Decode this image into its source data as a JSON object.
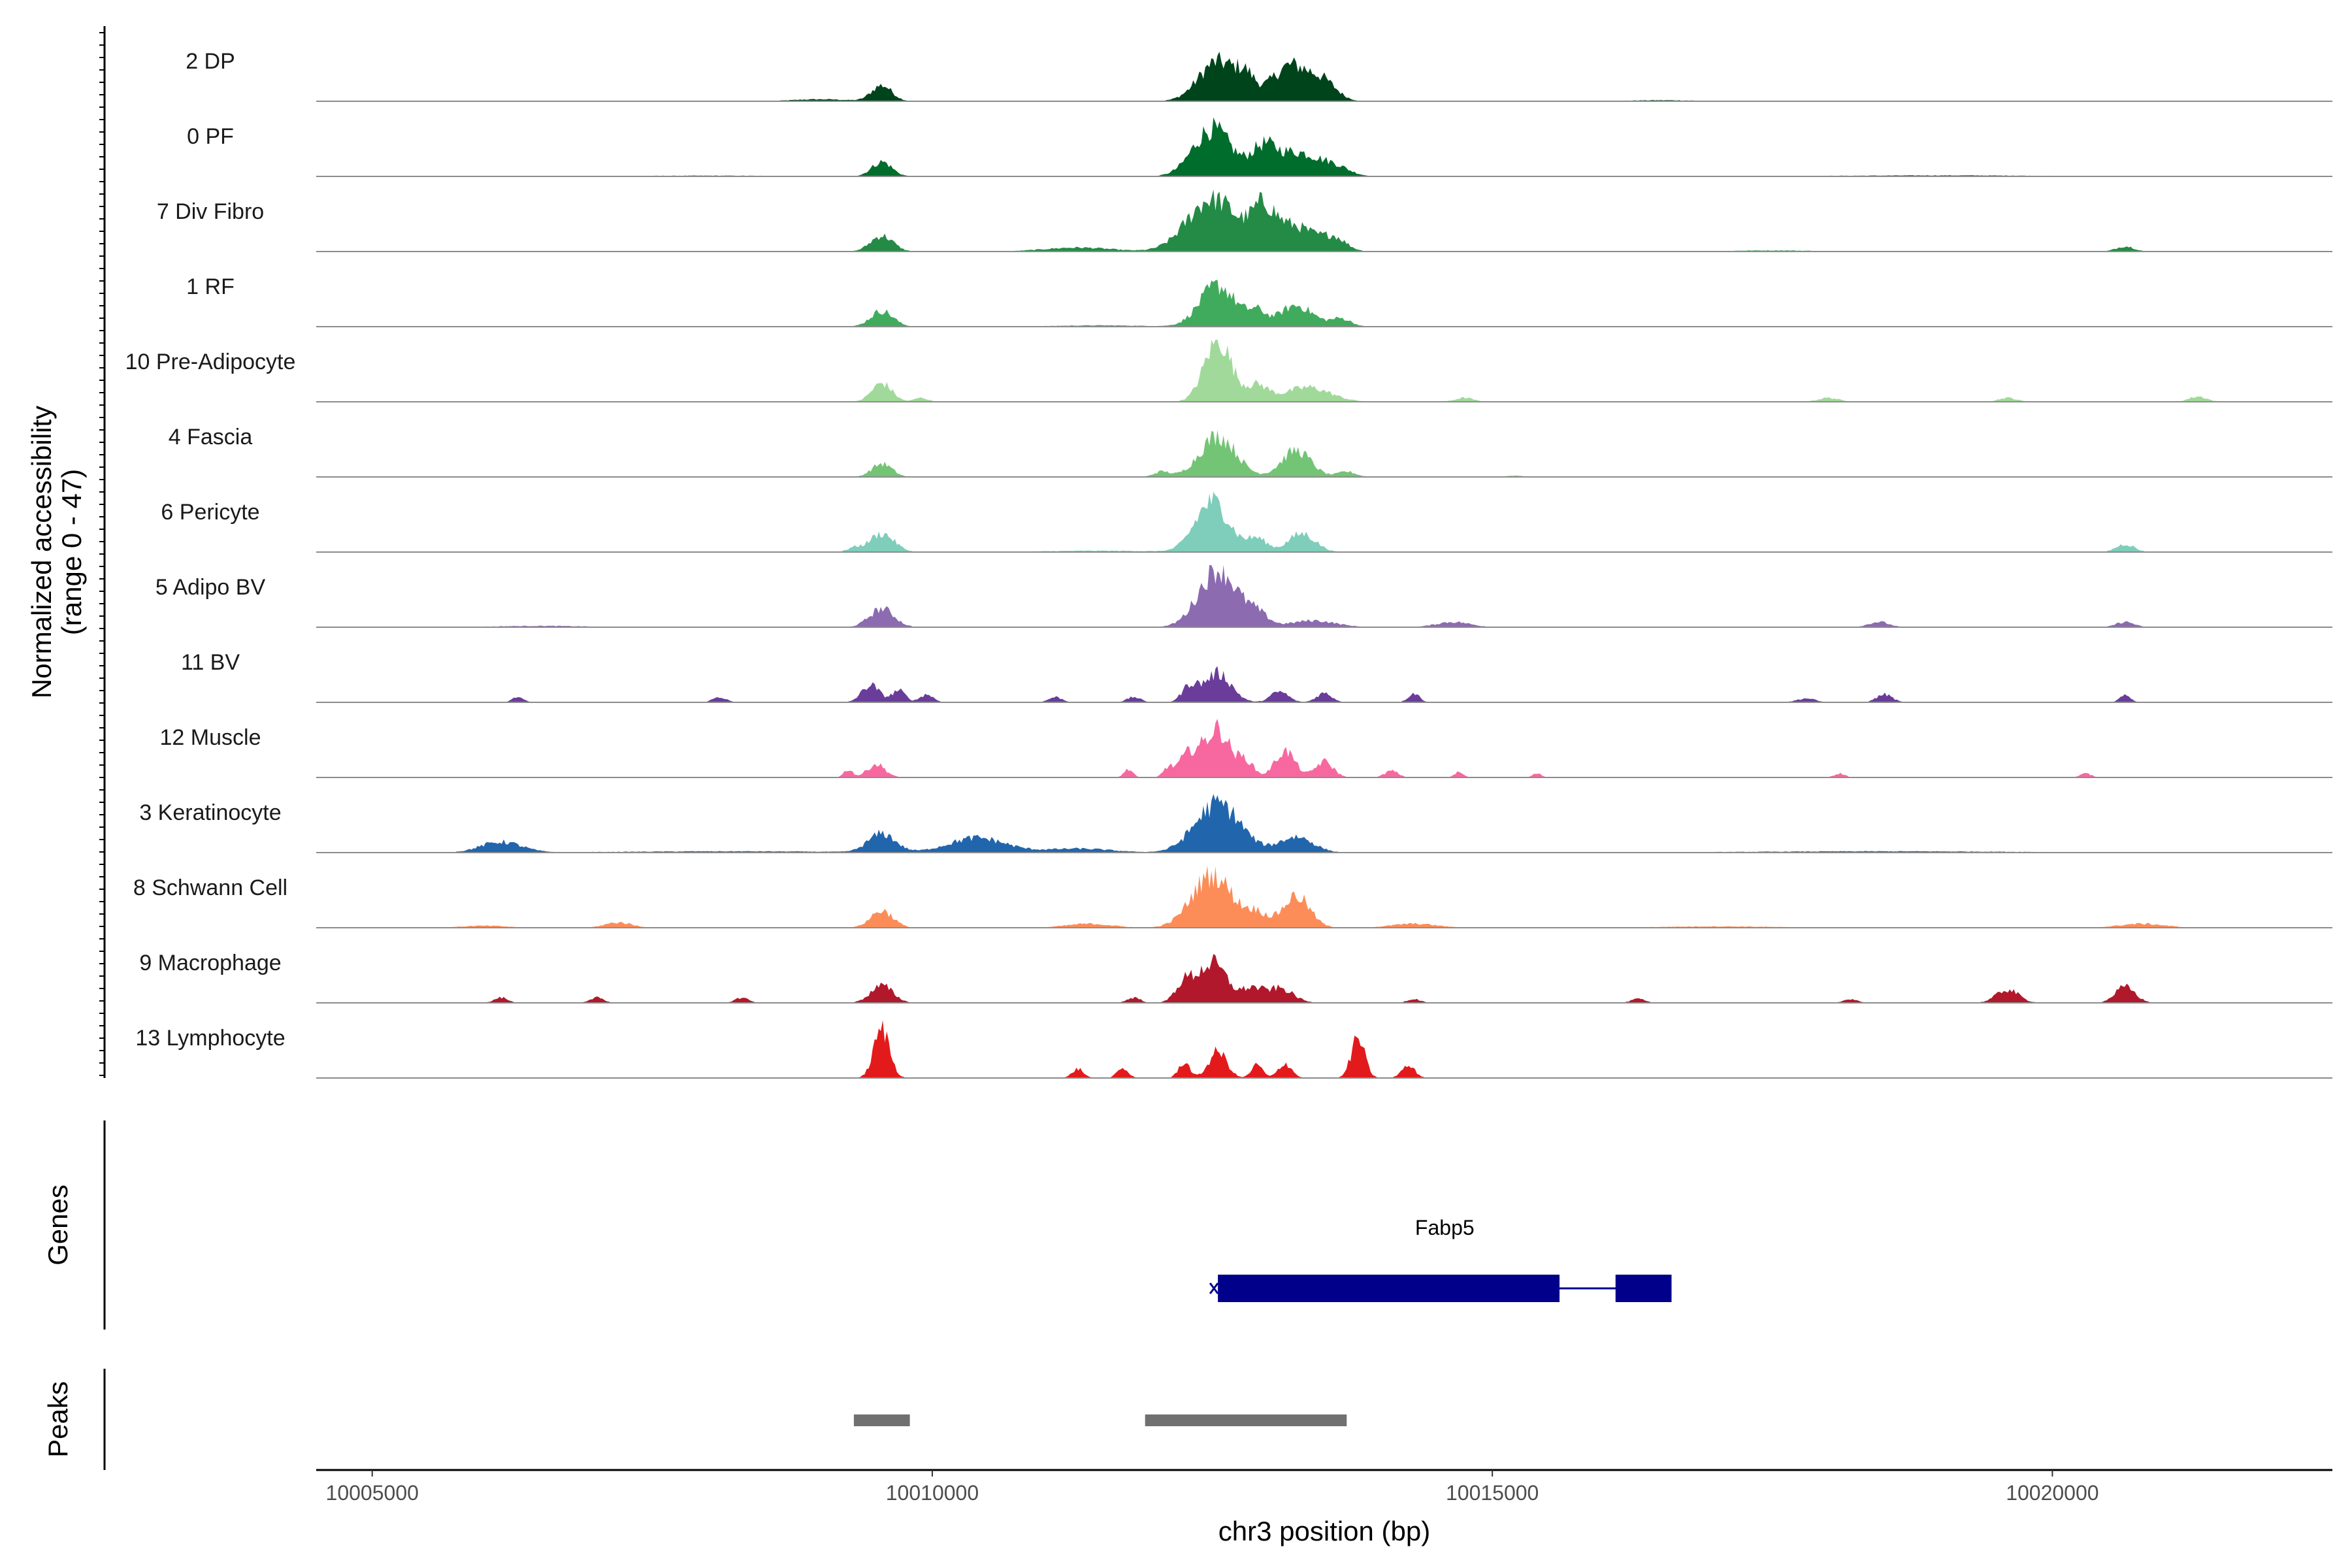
{
  "chart_data": {
    "type": "area",
    "ylabel_line1": "Normalized accessibility",
    "ylabel_line2": "(range 0 - 47)",
    "xlabel": "chr3 position (bp)",
    "xlim": [
      10004500,
      10022500
    ],
    "x_ticks": [
      10005000,
      10010000,
      10015000,
      10020000
    ],
    "x_tick_labels": [
      "10005000",
      "10010000",
      "10015000",
      "10020000"
    ],
    "ylim": [
      0,
      47
    ],
    "panel_labels": {
      "genes": "Genes",
      "peaks": "Peaks"
    },
    "series": [
      {
        "name": "2 DP",
        "color": "#00441b",
        "peaks": [
          [
            10009550,
            12,
            90
          ],
          [
            10012550,
            30,
            170
          ],
          [
            10012800,
            13,
            80
          ],
          [
            10013200,
            27,
            170
          ],
          [
            10013500,
            12,
            120
          ],
          [
            10009000,
            1.5,
            250
          ],
          [
            10016500,
            0.8,
            300
          ]
        ]
      },
      {
        "name": "0 PF",
        "color": "#006d2c",
        "peaks": [
          [
            10009550,
            11,
            90
          ],
          [
            10012500,
            36,
            170
          ],
          [
            10012950,
            18,
            110
          ],
          [
            10013250,
            18,
            200
          ],
          [
            10013600,
            6,
            130
          ],
          [
            10008000,
            0.6,
            600
          ],
          [
            10019000,
            0.8,
            900
          ]
        ]
      },
      {
        "name": "7 Div Fibro",
        "color": "#238b45",
        "peaks": [
          [
            10009550,
            12,
            100
          ],
          [
            10012500,
            40,
            220
          ],
          [
            10012950,
            22,
            100
          ],
          [
            10013200,
            20,
            220
          ],
          [
            10013600,
            8,
            100
          ],
          [
            10011300,
            3,
            300
          ],
          [
            10020650,
            4,
            80
          ],
          [
            10017500,
            0.8,
            400
          ]
        ]
      },
      {
        "name": "1 RF",
        "color": "#41ab5d",
        "peaks": [
          [
            10009550,
            12,
            100
          ],
          [
            10012550,
            31,
            160
          ],
          [
            10012900,
            10,
            80
          ],
          [
            10013250,
            16,
            150
          ],
          [
            10013650,
            6,
            90
          ],
          [
            10011500,
            1,
            400
          ]
        ]
      },
      {
        "name": "10 Pre-Adipocyte",
        "color": "#a1d99b",
        "peaks": [
          [
            10009550,
            14,
            90
          ],
          [
            10012550,
            47,
            120
          ],
          [
            10012900,
            12,
            100
          ],
          [
            10013350,
            11,
            200
          ],
          [
            10009900,
            3,
            60
          ],
          [
            10014750,
            3,
            80
          ],
          [
            10018000,
            3,
            90
          ],
          [
            10019600,
            3,
            80
          ],
          [
            10021300,
            4,
            80
          ]
        ]
      },
      {
        "name": "4 Fascia",
        "color": "#74c476",
        "peaks": [
          [
            10009550,
            10,
            90
          ],
          [
            10012550,
            31,
            160
          ],
          [
            10013250,
            20,
            130
          ],
          [
            10013700,
            4,
            80
          ],
          [
            10012050,
            4,
            70
          ],
          [
            10015200,
            1,
            80
          ]
        ]
      },
      {
        "name": "6 Pericyte",
        "color": "#7fcdbb",
        "peaks": [
          [
            10009550,
            14,
            110
          ],
          [
            10012500,
            38,
            150
          ],
          [
            10012900,
            10,
            90
          ],
          [
            10013300,
            14,
            120
          ],
          [
            10020650,
            6,
            80
          ],
          [
            10009300,
            3,
            60
          ],
          [
            10011500,
            1,
            500
          ]
        ]
      },
      {
        "name": "5 Adipo BV",
        "color": "#8c6bb1",
        "peaks": [
          [
            10009550,
            14,
            110
          ],
          [
            10012550,
            44,
            170
          ],
          [
            10012900,
            9,
            100
          ],
          [
            10013400,
            5,
            200
          ],
          [
            10014650,
            4,
            150
          ],
          [
            10018450,
            4,
            90
          ],
          [
            10020650,
            4,
            80
          ],
          [
            10006500,
            1,
            400
          ]
        ]
      },
      {
        "name": "11 BV",
        "color": "#6a3d9a",
        "peaks": [
          [
            10009450,
            13,
            80
          ],
          [
            10009700,
            9,
            60
          ],
          [
            10009950,
            6,
            60
          ],
          [
            10012550,
            22,
            120
          ],
          [
            10012300,
            12,
            70
          ],
          [
            10013100,
            8,
            80
          ],
          [
            10013500,
            7,
            70
          ],
          [
            10014300,
            7,
            50
          ],
          [
            10018500,
            6,
            70
          ],
          [
            10020650,
            5,
            50
          ],
          [
            10006300,
            4,
            50
          ],
          [
            10008100,
            4,
            60
          ],
          [
            10011100,
            4,
            60
          ],
          [
            10011800,
            4,
            60
          ],
          [
            10017800,
            3,
            80
          ]
        ]
      },
      {
        "name": "12 Muscle",
        "color": "#f768a1",
        "peaks": [
          [
            10009500,
            10,
            80
          ],
          [
            10009250,
            6,
            40
          ],
          [
            10012300,
            18,
            100
          ],
          [
            10012550,
            36,
            110
          ],
          [
            10012800,
            12,
            70
          ],
          [
            10013150,
            20,
            90
          ],
          [
            10013500,
            12,
            80
          ],
          [
            10011750,
            6,
            40
          ],
          [
            10012100,
            6,
            40
          ],
          [
            10014100,
            5,
            60
          ],
          [
            10014700,
            4,
            40
          ],
          [
            10015400,
            3,
            40
          ],
          [
            10018100,
            3,
            50
          ],
          [
            10020300,
            3,
            50
          ]
        ]
      },
      {
        "name": "3 Keratinocyte",
        "color": "#2166ac",
        "peaks": [
          [
            10009550,
            14,
            120
          ],
          [
            10012550,
            37,
            200
          ],
          [
            10013250,
            12,
            150
          ],
          [
            10010400,
            11,
            250
          ],
          [
            10006150,
            8,
            180
          ],
          [
            10011300,
            3,
            300
          ],
          [
            10008200,
            1,
            1000
          ],
          [
            10018500,
            1,
            1200
          ]
        ]
      },
      {
        "name": "8 Schwann Cell",
        "color": "#fc8d59",
        "peaks": [
          [
            10009550,
            13,
            100
          ],
          [
            10012500,
            40,
            180
          ],
          [
            10012900,
            10,
            100
          ],
          [
            10013250,
            24,
            120
          ],
          [
            10007200,
            4,
            120
          ],
          [
            10011400,
            3,
            200
          ],
          [
            10014300,
            3,
            200
          ],
          [
            10020800,
            3,
            200
          ],
          [
            10006000,
            1.5,
            200
          ],
          [
            10017000,
            1,
            500
          ]
        ]
      },
      {
        "name": "9 Macrophage",
        "color": "#b2182b",
        "peaks": [
          [
            10009550,
            13,
            100
          ],
          [
            10012500,
            30,
            130
          ],
          [
            10012250,
            14,
            80
          ],
          [
            10013100,
            11,
            120
          ],
          [
            10012850,
            10,
            90
          ],
          [
            10019600,
            10,
            100
          ],
          [
            10020650,
            12,
            90
          ],
          [
            10006150,
            4,
            60
          ],
          [
            10007000,
            4,
            60
          ],
          [
            10008300,
            4,
            60
          ],
          [
            10011800,
            4,
            60
          ],
          [
            10014300,
            3,
            60
          ],
          [
            10016300,
            3,
            60
          ],
          [
            10018200,
            3,
            60
          ]
        ]
      },
      {
        "name": "13 Lymphocyte",
        "color": "#e31a1c",
        "peaks": [
          [
            10009550,
            37,
            70
          ],
          [
            10012550,
            20,
            80
          ],
          [
            10013800,
            30,
            60
          ],
          [
            10013150,
            11,
            60
          ],
          [
            10012250,
            12,
            50
          ],
          [
            10011300,
            7,
            50
          ],
          [
            10011700,
            7,
            50
          ],
          [
            10014250,
            9,
            60
          ],
          [
            10012900,
            10,
            50
          ]
        ]
      }
    ],
    "genes": [
      {
        "name": "Fabp5",
        "start": 10012550,
        "end": 10016600,
        "exons": [
          [
            10012550,
            10015600
          ],
          [
            10016100,
            10016600
          ]
        ],
        "color": "#00008b"
      }
    ],
    "peaks": [
      [
        10009300,
        10009800
      ],
      [
        10011900,
        10013700
      ]
    ],
    "peak_color": "#707070"
  }
}
